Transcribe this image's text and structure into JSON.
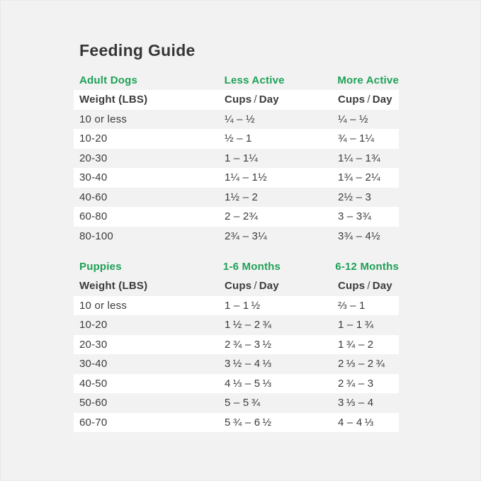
{
  "page": {
    "title": "Feeding Guide"
  },
  "theme": {
    "background": "#f2f2f2",
    "stripe": "#ffffff",
    "accent_green": "#1ea157",
    "text": "#3b3b3b"
  },
  "adult_table": {
    "section_label": "Adult Dogs",
    "col2_label": "Less Active",
    "col3_label": "More Active",
    "weight_header": "Weight (LBS)",
    "cups_word": "Cups",
    "slash": "/",
    "day_word": "Day",
    "rows": [
      {
        "weight": "10 or less",
        "col2": "¼ – ½",
        "col3": "¼ – ½"
      },
      {
        "weight": "10-20",
        "col2": "½ – 1",
        "col3": "¾ – 1¼"
      },
      {
        "weight": "20-30",
        "col2": "1 – 1¼",
        "col3": "1¼ – 1¾"
      },
      {
        "weight": "30-40",
        "col2": "1¼ – 1½",
        "col3": "1¾ – 2¼"
      },
      {
        "weight": "40-60",
        "col2": "1½ – 2",
        "col3": "2½ – 3"
      },
      {
        "weight": "60-80",
        "col2": "2 – 2¾",
        "col3": "3 – 3¾"
      },
      {
        "weight": "80-100",
        "col2": "2¾ – 3¼",
        "col3": "3¾ – 4½"
      }
    ]
  },
  "puppy_table": {
    "section_label": "Puppies",
    "col2_label": "1-6 Months",
    "col3_label": "6-12 Months",
    "weight_header": "Weight (LBS)",
    "cups_word": "Cups",
    "slash": "/",
    "day_word": "Day",
    "rows": [
      {
        "weight": "10 or less",
        "col2": "1 – 1 ½",
        "col3": "⅔ – 1"
      },
      {
        "weight": "10-20",
        "col2": "1 ½ – 2 ¾",
        "col3": "1 – 1 ¾"
      },
      {
        "weight": "20-30",
        "col2": "2 ¾ – 3 ½",
        "col3": "1 ¾ – 2"
      },
      {
        "weight": "30-40",
        "col2": "3 ½ – 4 ⅓",
        "col3": "2 ⅓ – 2 ¾"
      },
      {
        "weight": "40-50",
        "col2": "4 ⅓ – 5 ⅓",
        "col3": "2 ¾ – 3"
      },
      {
        "weight": "50-60",
        "col2": "5 – 5 ¾",
        "col3": "3 ⅓ – 4"
      },
      {
        "weight": "60-70",
        "col2": "5 ¾ – 6 ½",
        "col3": "4 – 4 ⅓"
      }
    ]
  }
}
